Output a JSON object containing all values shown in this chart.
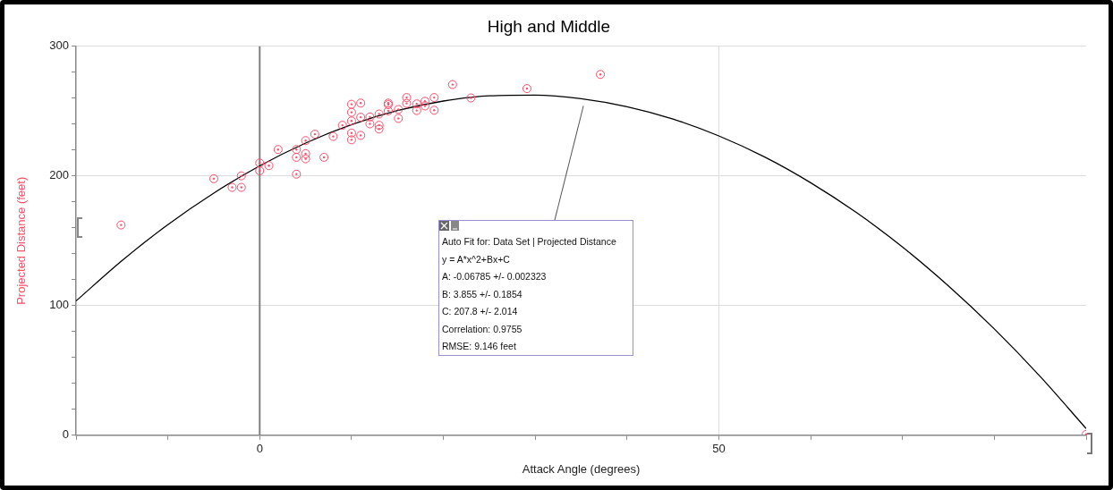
{
  "chart_data": {
    "type": "scatter",
    "title": "High and Middle",
    "xlabel": "Attack Angle (degrees)",
    "ylabel": "Projected Distance (feet)",
    "xlim": [
      -20,
      90
    ],
    "xticks": [
      {
        "value": -20,
        "label": null
      },
      {
        "value": -10,
        "label": null
      },
      0,
      {
        "value": 10,
        "label": null
      },
      {
        "value": 20,
        "label": null
      },
      {
        "value": 30,
        "label": null
      },
      {
        "value": 40,
        "label": null
      },
      50,
      {
        "value": 60,
        "label": null
      },
      {
        "value": 70,
        "label": null
      },
      {
        "value": 80,
        "label": null
      },
      {
        "value": 90,
        "label": null
      }
    ],
    "ylim": [
      0,
      300
    ],
    "yticks": [
      0,
      {
        "value": 20,
        "label": null
      },
      {
        "value": 40,
        "label": null
      },
      {
        "value": 60,
        "label": null
      },
      {
        "value": 80,
        "label": null
      },
      100,
      {
        "value": 120,
        "label": null
      },
      {
        "value": 140,
        "label": null
      },
      {
        "value": 160,
        "label": null
      },
      {
        "value": 180,
        "label": null
      },
      200,
      {
        "value": 220,
        "label": null
      },
      {
        "value": 240,
        "label": null
      },
      {
        "value": 260,
        "label": null
      },
      {
        "value": 280,
        "label": null
      },
      300
    ],
    "grid": true,
    "marker": "circle",
    "ref_lines": [
      {
        "axis": "x",
        "value": 0,
        "color": "#808080"
      }
    ],
    "series": [
      {
        "color": "#ff4d6a",
        "x": [
          -15.1,
          -5,
          -3,
          -2,
          -2,
          0,
          0,
          1,
          2,
          4,
          4,
          4,
          5,
          5,
          5,
          6,
          7,
          8,
          9,
          10,
          10,
          10,
          10,
          10,
          11,
          11,
          11,
          12,
          12,
          13,
          13,
          13,
          14,
          14,
          14,
          15.1,
          15.1,
          16,
          16,
          17.1,
          17.1,
          18,
          18,
          19,
          19,
          21,
          23,
          29.1,
          37.1,
          90
        ],
        "values": [
          162.2,
          197.9,
          191.2,
          191.2,
          200.1,
          204,
          210,
          208,
          220.4,
          220.4,
          214.4,
          201.4,
          217.2,
          213.2,
          227.3,
          232.2,
          214.4,
          230.5,
          239.1,
          255.3,
          249.1,
          242.4,
          233.1,
          227.9,
          256.2,
          245.3,
          231.3,
          245.5,
          240.2,
          247.8,
          239.1,
          236.2,
          256.2,
          255,
          250.2,
          251.3,
          244.4,
          260.5,
          256,
          255.6,
          250.5,
          257.6,
          254,
          260.5,
          250.7,
          270.5,
          260.2,
          267.4,
          278.3,
          0.7
        ]
      },
      {
        "type": "line",
        "color": "#000000",
        "marker": "none",
        "x": [
          -20,
          -15,
          -10,
          -5,
          0,
          5,
          10,
          15,
          20,
          25,
          30,
          35,
          40,
          45,
          50,
          55,
          60,
          65,
          70,
          75,
          80,
          85,
          90
        ],
        "values": [
          103.6,
          134.7,
          162.5,
          186.8,
          207.8,
          225.4,
          239.6,
          250.4,
          257.8,
          261.8,
          262.4,
          259.6,
          253.4,
          243.9,
          230.9,
          214.6,
          194.8,
          171.7,
          145.2,
          115.2,
          82.0,
          45.3,
          5.2
        ]
      }
    ],
    "annotations": [
      "Auto Fit for: Data Set | Projected Distance",
      "y = A*x^2+Bx+C",
      "A: -0.06785 +/- 0.002323",
      "B: 3.855 +/- 0.1854",
      "C: 207.8 +/- 2.014",
      "Correlation: 0.9755",
      "RMSE: 9.146 feet"
    ]
  }
}
